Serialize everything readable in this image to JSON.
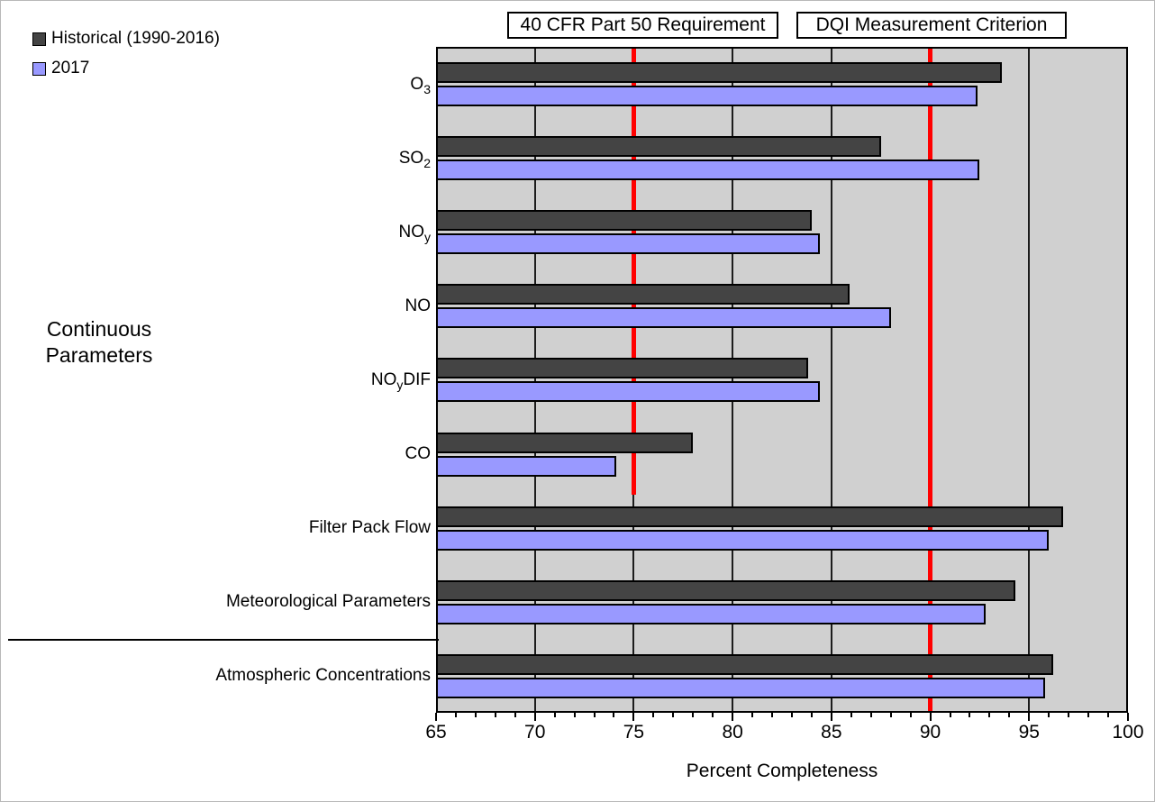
{
  "legend": {
    "historical_label": "Historical (1990-2016)",
    "y2017_label": "2017"
  },
  "group_label": {
    "line1": "Continuous",
    "line2": "Parameters"
  },
  "colors": {
    "historical_fill": "#444444",
    "y2017_fill": "#9999ff",
    "plot_background": "#d0d0d0",
    "reference_line": "#ff0000",
    "gridline": "#1c1c1c"
  },
  "chart_data": {
    "type": "bar",
    "orientation": "horizontal",
    "title": "",
    "xlabel": "Percent Completeness",
    "xlim": [
      65,
      100
    ],
    "x_major_ticks": [
      65,
      70,
      75,
      80,
      85,
      90,
      95,
      100
    ],
    "x_minor_tick_step": 1,
    "grid": "vertical-major",
    "legend_position": "top-left",
    "categories": [
      {
        "name": "O3",
        "parts": [
          {
            "t": "O"
          },
          {
            "t": "3",
            "sub": true
          }
        ]
      },
      {
        "name": "SO2",
        "parts": [
          {
            "t": "SO"
          },
          {
            "t": "2",
            "sub": true
          }
        ]
      },
      {
        "name": "NOy",
        "parts": [
          {
            "t": "NO"
          },
          {
            "t": "y",
            "sub": true
          }
        ]
      },
      {
        "name": "NO",
        "parts": [
          {
            "t": "NO"
          }
        ]
      },
      {
        "name": "NOyDIF",
        "parts": [
          {
            "t": "NO"
          },
          {
            "t": "y",
            "sub": true
          },
          {
            "t": "DIF"
          }
        ]
      },
      {
        "name": "CO",
        "parts": [
          {
            "t": "CO"
          }
        ]
      },
      {
        "name": "Filter Pack Flow",
        "parts": [
          {
            "t": "Filter Pack Flow"
          }
        ]
      },
      {
        "name": "Meteorological Parameters",
        "parts": [
          {
            "t": "Meteorological Parameters"
          }
        ]
      },
      {
        "name": "Atmospheric Concentrations",
        "parts": [
          {
            "t": "Atmospheric Concentrations"
          }
        ]
      }
    ],
    "series": [
      {
        "name": "Historical (1990-2016)",
        "color": "#444444",
        "values": [
          93.6,
          87.5,
          84.0,
          85.9,
          83.8,
          78.0,
          96.7,
          94.3,
          96.2
        ]
      },
      {
        "name": "2017",
        "color": "#9999ff",
        "values": [
          92.4,
          92.5,
          84.4,
          88.0,
          84.4,
          74.1,
          96.0,
          92.8,
          95.8
        ]
      }
    ],
    "reference_lines": [
      {
        "label": "40 CFR Part 50 Requirement",
        "x": 75,
        "color": "#ff0000",
        "rows_spanned": 6
      },
      {
        "label": "DQI Measurement Criterion",
        "x": 90,
        "color": "#ff0000",
        "rows_spanned": 9
      }
    ]
  }
}
